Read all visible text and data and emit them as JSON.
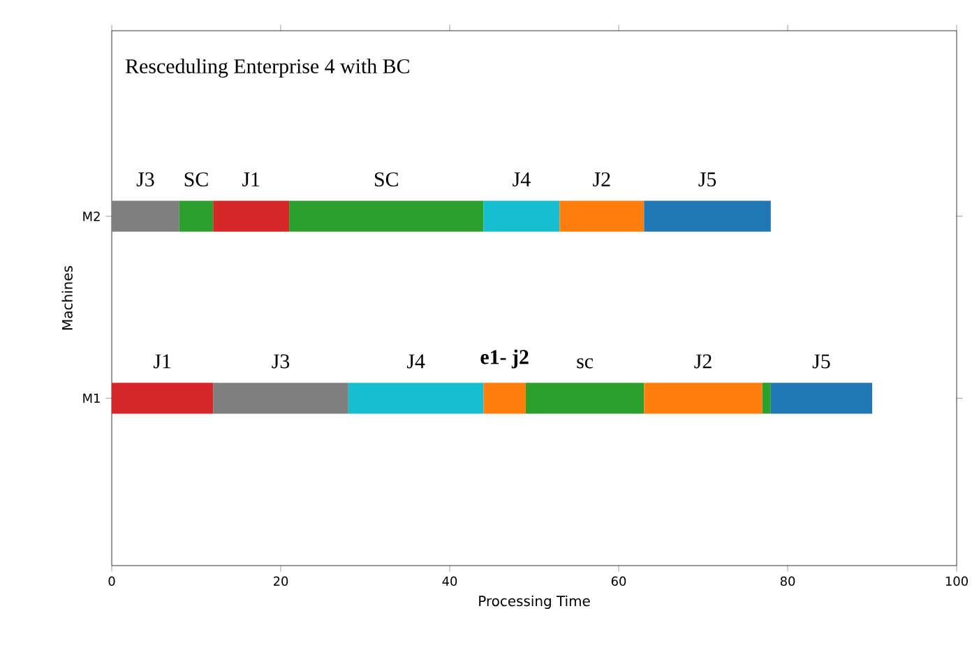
{
  "chart_data": {
    "type": "bar",
    "orientation": "horizontal",
    "title": "Resceduling Enterprise 4 with BC",
    "xlabel": "Processing Time",
    "ylabel": "Machines",
    "categories": [
      "M2",
      "M1"
    ],
    "xlim": [
      0,
      100
    ],
    "xticks": [
      0,
      20,
      40,
      60,
      80,
      100
    ],
    "series": [
      {
        "name": "J3",
        "color": "#7f7f7f",
        "base": [
          0,
          null
        ],
        "values": [
          8,
          null
        ]
      },
      {
        "name": "SC",
        "color": "#2ca02c",
        "base": [
          8,
          null
        ],
        "values": [
          4,
          null
        ]
      },
      {
        "name": "J1",
        "color": "#d62728",
        "base": [
          12,
          null
        ],
        "values": [
          9,
          null
        ]
      },
      {
        "name": "SC",
        "color": "#2ca02c",
        "base": [
          21,
          null
        ],
        "values": [
          23,
          null
        ]
      },
      {
        "name": "J4",
        "color": "#17becf",
        "base": [
          44,
          null
        ],
        "values": [
          9,
          null
        ]
      },
      {
        "name": "J2",
        "color": "#ff7f0e",
        "base": [
          53,
          null
        ],
        "values": [
          10,
          null
        ]
      },
      {
        "name": "J5",
        "color": "#1f77b4",
        "base": [
          63,
          null
        ],
        "values": [
          15,
          null
        ]
      },
      {
        "name": "J1",
        "color": "#d62728",
        "base": [
          null,
          0
        ],
        "values": [
          null,
          12
        ]
      },
      {
        "name": "J3",
        "color": "#7f7f7f",
        "base": [
          null,
          12
        ],
        "values": [
          null,
          16
        ]
      },
      {
        "name": "J4",
        "color": "#17becf",
        "base": [
          null,
          28
        ],
        "values": [
          null,
          16
        ]
      },
      {
        "name": "**e1- j2**",
        "color": "#ff7f0e",
        "base": [
          null,
          44
        ],
        "values": [
          null,
          5
        ]
      },
      {
        "name": "sc",
        "color": "#2ca02c",
        "base": [
          null,
          49
        ],
        "values": [
          null,
          14
        ]
      },
      {
        "name": "J2",
        "color": "#ff7f0e",
        "base": [
          null,
          63
        ],
        "values": [
          null,
          14
        ]
      },
      {
        "color": "#2ca02c",
        "base": [
          null,
          77
        ],
        "values": [
          null,
          1
        ]
      },
      {
        "name": "J5",
        "color": "#1f77b4",
        "base": [
          null,
          78
        ],
        "values": [
          null,
          12
        ]
      }
    ]
  }
}
